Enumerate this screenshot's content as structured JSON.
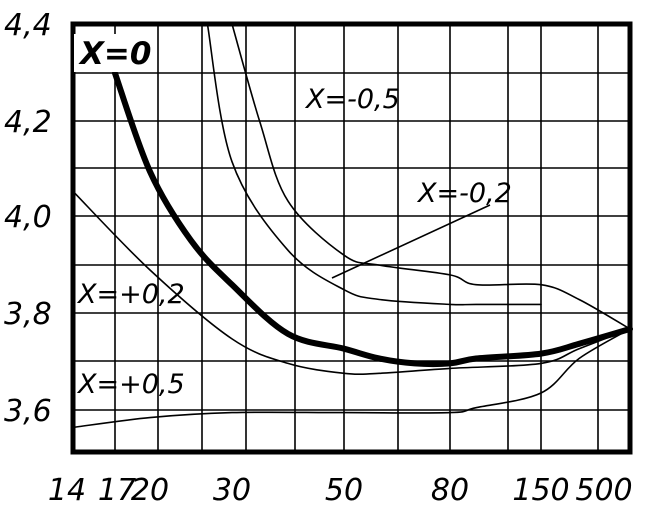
{
  "chart_data": {
    "type": "line",
    "title": "",
    "xlabel": "",
    "ylabel": "",
    "x_scale": "nonlinear (category-spaced ticks)",
    "grid": true,
    "x_ticks": [
      "14",
      "17",
      "20",
      "30",
      "50",
      "80",
      "150",
      "500"
    ],
    "y_ticks": [
      "3,6",
      "3,8",
      "4,0",
      "4,2",
      "4,4"
    ],
    "ylim": [
      3.53,
      4.4
    ],
    "colors": {
      "axis": "#000000",
      "curve": "#000000",
      "background": "#ffffff"
    },
    "series": [
      {
        "name": "X=0",
        "emphasis": "bold",
        "points": [
          [
            17,
            4.3
          ],
          [
            20,
            4.1
          ],
          [
            25,
            3.96
          ],
          [
            30,
            3.87
          ],
          [
            40,
            3.77
          ],
          [
            50,
            3.74
          ],
          [
            60,
            3.72
          ],
          [
            70,
            3.71
          ],
          [
            80,
            3.71
          ],
          [
            100,
            3.72
          ],
          [
            150,
            3.73
          ],
          [
            300,
            3.75
          ],
          [
            500,
            3.78
          ]
        ]
      },
      {
        "name": "X=-0,5",
        "points": [
          [
            30,
            4.4
          ],
          [
            35,
            4.2
          ],
          [
            40,
            4.04
          ],
          [
            50,
            3.93
          ],
          [
            60,
            3.91
          ],
          [
            80,
            3.89
          ],
          [
            100,
            3.87
          ],
          [
            150,
            3.87
          ],
          [
            300,
            3.84
          ],
          [
            500,
            3.78
          ]
        ]
      },
      {
        "name": "X=-0,2",
        "points": [
          [
            27,
            4.4
          ],
          [
            30,
            4.12
          ],
          [
            40,
            3.94
          ],
          [
            50,
            3.86
          ],
          [
            60,
            3.84
          ],
          [
            80,
            3.83
          ],
          [
            100,
            3.83
          ],
          [
            150,
            3.83
          ]
        ]
      },
      {
        "name": "X=+0,2",
        "points": [
          [
            14,
            4.06
          ],
          [
            20,
            3.9
          ],
          [
            30,
            3.76
          ],
          [
            40,
            3.71
          ],
          [
            50,
            3.69
          ],
          [
            60,
            3.69
          ],
          [
            80,
            3.7
          ],
          [
            150,
            3.71
          ],
          [
            300,
            3.74
          ],
          [
            500,
            3.78
          ]
        ]
      },
      {
        "name": "X=+0,5",
        "points": [
          [
            14,
            3.58
          ],
          [
            20,
            3.6
          ],
          [
            30,
            3.61
          ],
          [
            50,
            3.61
          ],
          [
            80,
            3.61
          ],
          [
            100,
            3.62
          ],
          [
            150,
            3.65
          ],
          [
            300,
            3.72
          ],
          [
            500,
            3.78
          ]
        ]
      }
    ],
    "annotations": [
      {
        "text": "X=0",
        "target_series": "X=0"
      },
      {
        "text": "X=-0,5",
        "target_series": "X=-0,5"
      },
      {
        "text": "X=-0,2",
        "target_series": "X=-0,2"
      },
      {
        "text": "X=+0,2",
        "target_series": "X=+0,2"
      },
      {
        "text": "X=+0,5",
        "target_series": "X=+0,5"
      }
    ]
  }
}
